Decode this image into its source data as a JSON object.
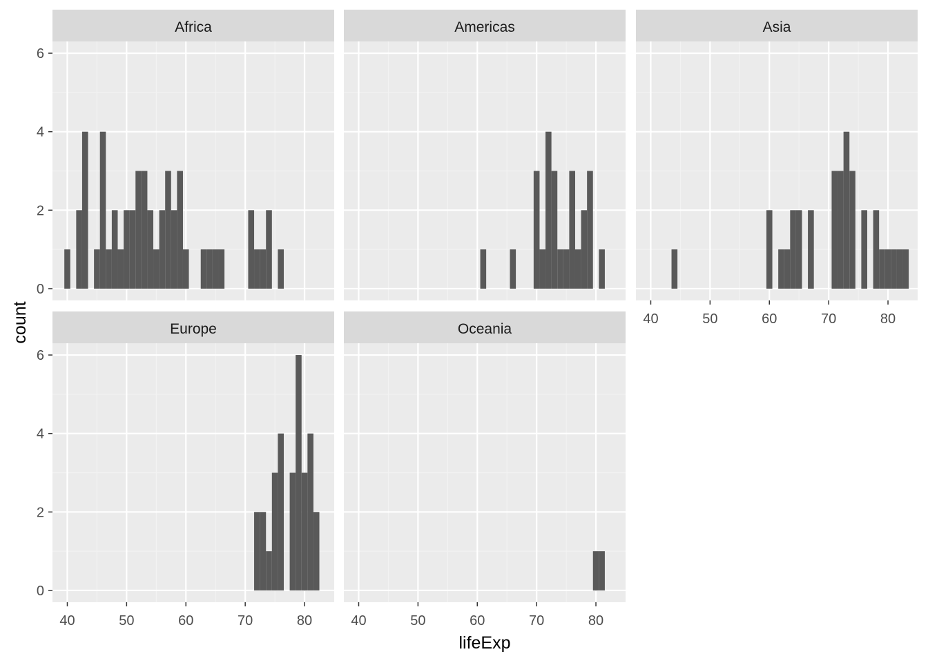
{
  "chart_data": {
    "type": "bar",
    "subtype": "faceted-histogram",
    "xlabel": "lifeExp",
    "ylabel": "count",
    "xlim": [
      37.5,
      85.0
    ],
    "ylim": [
      -0.3,
      6.3
    ],
    "x_ticks": [
      40,
      50,
      60,
      70,
      80
    ],
    "y_ticks": [
      0,
      2,
      4,
      6
    ],
    "bin_width": 1,
    "grid": true,
    "colors": {
      "bar": "#595959",
      "panel": "#ebebeb",
      "strip": "#d9d9d9",
      "grid_major": "#ffffff",
      "grid_minor": "#f2f2f2"
    },
    "facets": [
      {
        "name": "Africa",
        "bins": [
          {
            "x": 40,
            "count": 1
          },
          {
            "x": 42,
            "count": 2
          },
          {
            "x": 43,
            "count": 4
          },
          {
            "x": 45,
            "count": 1
          },
          {
            "x": 46,
            "count": 4
          },
          {
            "x": 47,
            "count": 1
          },
          {
            "x": 48,
            "count": 2
          },
          {
            "x": 49,
            "count": 1
          },
          {
            "x": 50,
            "count": 2
          },
          {
            "x": 51,
            "count": 2
          },
          {
            "x": 52,
            "count": 3
          },
          {
            "x": 53,
            "count": 3
          },
          {
            "x": 54,
            "count": 2
          },
          {
            "x": 55,
            "count": 1
          },
          {
            "x": 56,
            "count": 2
          },
          {
            "x": 57,
            "count": 3
          },
          {
            "x": 58,
            "count": 2
          },
          {
            "x": 59,
            "count": 3
          },
          {
            "x": 60,
            "count": 1
          },
          {
            "x": 63,
            "count": 1
          },
          {
            "x": 64,
            "count": 1
          },
          {
            "x": 65,
            "count": 1
          },
          {
            "x": 66,
            "count": 1
          },
          {
            "x": 71,
            "count": 2
          },
          {
            "x": 72,
            "count": 1
          },
          {
            "x": 73,
            "count": 1
          },
          {
            "x": 74,
            "count": 2
          },
          {
            "x": 76,
            "count": 1
          }
        ]
      },
      {
        "name": "Americas",
        "bins": [
          {
            "x": 61,
            "count": 1
          },
          {
            "x": 66,
            "count": 1
          },
          {
            "x": 70,
            "count": 3
          },
          {
            "x": 71,
            "count": 1
          },
          {
            "x": 72,
            "count": 4
          },
          {
            "x": 73,
            "count": 3
          },
          {
            "x": 74,
            "count": 1
          },
          {
            "x": 75,
            "count": 1
          },
          {
            "x": 76,
            "count": 3
          },
          {
            "x": 77,
            "count": 1
          },
          {
            "x": 78,
            "count": 2
          },
          {
            "x": 79,
            "count": 3
          },
          {
            "x": 81,
            "count": 1
          }
        ]
      },
      {
        "name": "Asia",
        "bins": [
          {
            "x": 44,
            "count": 1
          },
          {
            "x": 60,
            "count": 2
          },
          {
            "x": 62,
            "count": 1
          },
          {
            "x": 63,
            "count": 1
          },
          {
            "x": 64,
            "count": 2
          },
          {
            "x": 65,
            "count": 2
          },
          {
            "x": 67,
            "count": 2
          },
          {
            "x": 71,
            "count": 3
          },
          {
            "x": 72,
            "count": 3
          },
          {
            "x": 73,
            "count": 4
          },
          {
            "x": 74,
            "count": 3
          },
          {
            "x": 76,
            "count": 2
          },
          {
            "x": 78,
            "count": 2
          },
          {
            "x": 79,
            "count": 1
          },
          {
            "x": 80,
            "count": 1
          },
          {
            "x": 81,
            "count": 1
          },
          {
            "x": 82,
            "count": 1
          },
          {
            "x": 83,
            "count": 1
          }
        ]
      },
      {
        "name": "Europe",
        "bins": [
          {
            "x": 72,
            "count": 2
          },
          {
            "x": 73,
            "count": 2
          },
          {
            "x": 74,
            "count": 1
          },
          {
            "x": 75,
            "count": 3
          },
          {
            "x": 76,
            "count": 4
          },
          {
            "x": 78,
            "count": 3
          },
          {
            "x": 79,
            "count": 6
          },
          {
            "x": 80,
            "count": 3
          },
          {
            "x": 81,
            "count": 4
          },
          {
            "x": 82,
            "count": 2
          }
        ]
      },
      {
        "name": "Oceania",
        "bins": [
          {
            "x": 80,
            "count": 1
          },
          {
            "x": 81,
            "count": 1
          }
        ]
      }
    ]
  }
}
